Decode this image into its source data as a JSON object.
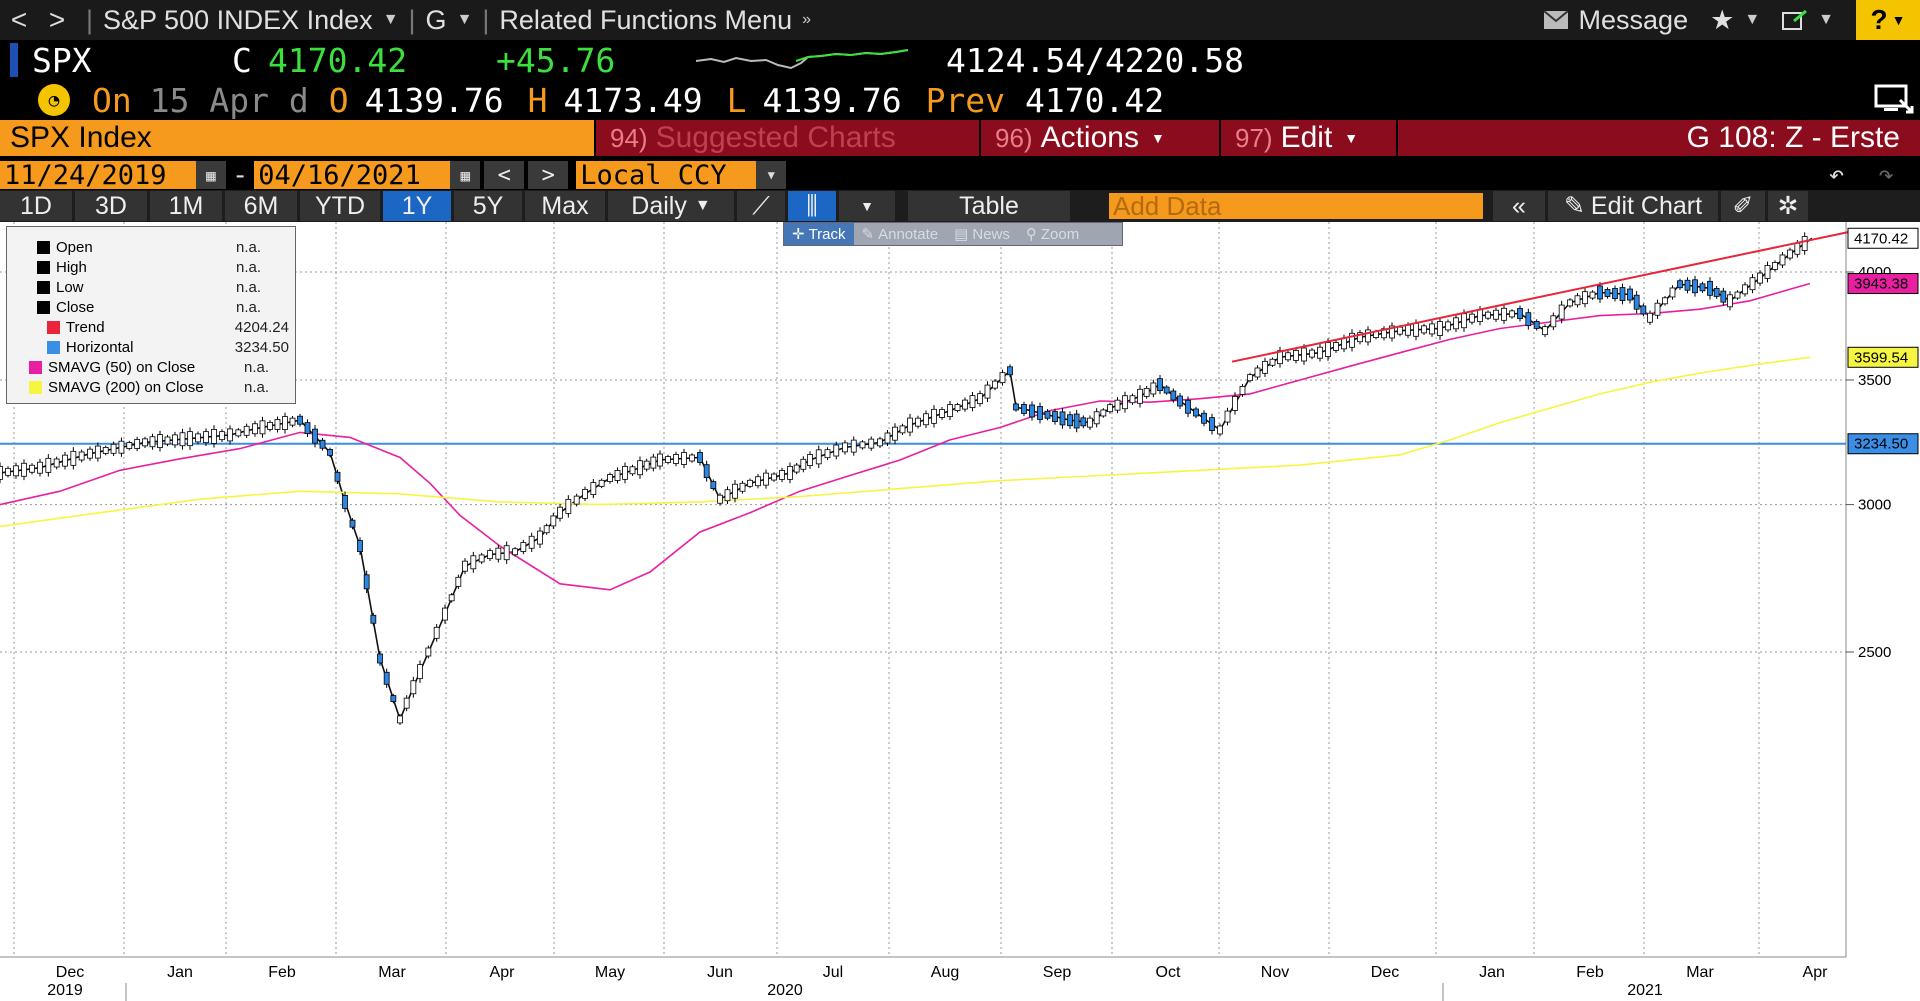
{
  "topbar": {
    "back": "<",
    "forward": ">",
    "security": "S&P 500 INDEX Index",
    "function": "G",
    "related": "Related Functions Menu",
    "message": "Message",
    "help": "?"
  },
  "ticker": {
    "symbol": "SPX",
    "last_label": "C",
    "last": "4170.42",
    "change": "+45.76",
    "range": "4124.54/4220.58"
  },
  "summary": {
    "on": "On",
    "date": "15 Apr d",
    "open_label": "O",
    "open": "4139.76",
    "high_label": "H",
    "high": "4173.49",
    "low_label": "L",
    "low": "4139.76",
    "prev_label": "Prev",
    "prev": "4170.42"
  },
  "titlebar": {
    "security": "SPX Index",
    "suggested_num": "94)",
    "suggested": "Suggested Charts",
    "actions_num": "96)",
    "actions": "Actions",
    "edit_num": "97)",
    "edit": "Edit",
    "layout": "G 108: Z - Erste"
  },
  "daterow": {
    "start": "11/24/2019",
    "dash": "-",
    "end": "04/16/2021",
    "currency": "Local CCY"
  },
  "rangebar": {
    "ranges": [
      "1D",
      "3D",
      "1M",
      "6M",
      "YTD",
      "1Y",
      "5Y",
      "Max"
    ],
    "active": "1Y",
    "period": "Daily",
    "table": "Table",
    "add_data_placeholder": "Add Data",
    "edit_chart": "Edit Chart"
  },
  "chart_toolbar": [
    "Track",
    "Annotate",
    "News",
    "Zoom"
  ],
  "legend": [
    {
      "name": "Open",
      "value": "n.a.",
      "color": "#000000"
    },
    {
      "name": "High",
      "value": "n.a.",
      "color": "#000000"
    },
    {
      "name": "Low",
      "value": "n.a.",
      "color": "#000000"
    },
    {
      "name": "Close",
      "value": "n.a.",
      "color": "#000000"
    },
    {
      "name": "Trend",
      "value": "4204.24",
      "color": "#e8253a"
    },
    {
      "name": "Horizontal",
      "value": "3234.50",
      "color": "#3a8ee6"
    },
    {
      "name": "SMAVG (50)  on Close",
      "value": "n.a.",
      "color": "#e81fa0"
    },
    {
      "name": "SMAVG (200)  on Close",
      "value": "n.a.",
      "color": "#f5f542"
    }
  ],
  "chart_data": {
    "type": "line",
    "series": [
      {
        "name": "Close",
        "color": "#000000",
        "points": [
          [
            0,
            3120
          ],
          [
            40,
            3140
          ],
          [
            90,
            3195
          ],
          [
            145,
            3240
          ],
          [
            190,
            3255
          ],
          [
            230,
            3270
          ],
          [
            255,
            3295
          ],
          [
            300,
            3330
          ],
          [
            330,
            3200
          ],
          [
            345,
            3010
          ],
          [
            360,
            2850
          ],
          [
            380,
            2480
          ],
          [
            400,
            2300
          ],
          [
            420,
            2440
          ],
          [
            445,
            2620
          ],
          [
            465,
            2780
          ],
          [
            490,
            2820
          ],
          [
            515,
            2830
          ],
          [
            540,
            2880
          ],
          [
            560,
            2970
          ],
          [
            585,
            3040
          ],
          [
            610,
            3100
          ],
          [
            640,
            3140
          ],
          [
            660,
            3170
          ],
          [
            700,
            3180
          ],
          [
            720,
            3020
          ],
          [
            750,
            3080
          ],
          [
            790,
            3120
          ],
          [
            810,
            3170
          ],
          [
            845,
            3220
          ],
          [
            880,
            3240
          ],
          [
            910,
            3310
          ],
          [
            950,
            3370
          ],
          [
            980,
            3420
          ],
          [
            1010,
            3540
          ],
          [
            1016,
            3385
          ],
          [
            1040,
            3360
          ],
          [
            1070,
            3330
          ],
          [
            1090,
            3320
          ],
          [
            1110,
            3380
          ],
          [
            1140,
            3430
          ],
          [
            1160,
            3480
          ],
          [
            1180,
            3410
          ],
          [
            1220,
            3290
          ],
          [
            1250,
            3510
          ],
          [
            1280,
            3600
          ],
          [
            1320,
            3620
          ],
          [
            1360,
            3690
          ],
          [
            1400,
            3720
          ],
          [
            1440,
            3730
          ],
          [
            1480,
            3790
          ],
          [
            1520,
            3800
          ],
          [
            1545,
            3720
          ],
          [
            1570,
            3850
          ],
          [
            1600,
            3900
          ],
          [
            1630,
            3890
          ],
          [
            1650,
            3780
          ],
          [
            1680,
            3940
          ],
          [
            1710,
            3920
          ],
          [
            1730,
            3860
          ],
          [
            1760,
            3970
          ],
          [
            1790,
            4090
          ],
          [
            1812,
            4170
          ]
        ]
      },
      {
        "name": "SMAVG (50) on Close",
        "color": "#e81fa0",
        "points": [
          [
            0,
            3000
          ],
          [
            60,
            3050
          ],
          [
            120,
            3130
          ],
          [
            180,
            3175
          ],
          [
            240,
            3215
          ],
          [
            300,
            3280
          ],
          [
            350,
            3260
          ],
          [
            400,
            3180
          ],
          [
            430,
            3080
          ],
          [
            460,
            2960
          ],
          [
            500,
            2850
          ],
          [
            560,
            2720
          ],
          [
            610,
            2700
          ],
          [
            650,
            2760
          ],
          [
            700,
            2900
          ],
          [
            750,
            2970
          ],
          [
            800,
            3050
          ],
          [
            850,
            3110
          ],
          [
            900,
            3170
          ],
          [
            950,
            3250
          ],
          [
            1000,
            3300
          ],
          [
            1050,
            3370
          ],
          [
            1100,
            3410
          ],
          [
            1150,
            3405
          ],
          [
            1200,
            3420
          ],
          [
            1250,
            3440
          ],
          [
            1300,
            3500
          ],
          [
            1350,
            3560
          ],
          [
            1400,
            3620
          ],
          [
            1450,
            3680
          ],
          [
            1500,
            3730
          ],
          [
            1550,
            3760
          ],
          [
            1600,
            3790
          ],
          [
            1650,
            3800
          ],
          [
            1700,
            3820
          ],
          [
            1750,
            3860
          ],
          [
            1810,
            3943.38
          ]
        ]
      },
      {
        "name": "SMAVG (200) on Close",
        "color": "#f5f542",
        "points": [
          [
            0,
            2920
          ],
          [
            100,
            2970
          ],
          [
            200,
            3020
          ],
          [
            300,
            3050
          ],
          [
            400,
            3040
          ],
          [
            500,
            3010
          ],
          [
            600,
            3000
          ],
          [
            700,
            3010
          ],
          [
            800,
            3030
          ],
          [
            900,
            3060
          ],
          [
            1000,
            3090
          ],
          [
            1100,
            3110
          ],
          [
            1200,
            3130
          ],
          [
            1300,
            3150
          ],
          [
            1400,
            3190
          ],
          [
            1450,
            3250
          ],
          [
            1500,
            3320
          ],
          [
            1550,
            3380
          ],
          [
            1600,
            3440
          ],
          [
            1650,
            3490
          ],
          [
            1700,
            3530
          ],
          [
            1760,
            3570
          ],
          [
            1810,
            3599.54
          ]
        ]
      }
    ],
    "trendline": {
      "x1": 1232,
      "y1": 3580,
      "x2": 1850,
      "y2": 4204.24
    },
    "horizontal": 3234.5,
    "yticks": [
      2500,
      3000,
      3500,
      4000
    ],
    "price_labels": [
      {
        "text": "4170.42",
        "value": 4170.42,
        "bg": "#ffffff",
        "fg": "#000000"
      },
      {
        "text": "3943.38",
        "value": 3943.38,
        "bg": "#e81fa0",
        "fg": "#000000"
      },
      {
        "text": "3599.54",
        "value": 3599.54,
        "bg": "#f5f542",
        "fg": "#000000"
      },
      {
        "text": "3234.50",
        "value": 3234.5,
        "bg": "#3a8ee6",
        "fg": "#000000"
      }
    ],
    "tick_label_4000": "4000",
    "tick_label_3500": "3500",
    "tick_label_3000": "3000",
    "tick_label_2500": "2500",
    "months": [
      {
        "label": "Dec",
        "x": 70
      },
      {
        "label": "Jan",
        "x": 180
      },
      {
        "label": "Feb",
        "x": 282
      },
      {
        "label": "Mar",
        "x": 392
      },
      {
        "label": "Apr",
        "x": 502
      },
      {
        "label": "May",
        "x": 610
      },
      {
        "label": "Jun",
        "x": 720
      },
      {
        "label": "Jul",
        "x": 833
      },
      {
        "label": "Aug",
        "x": 945
      },
      {
        "label": "Sep",
        "x": 1057
      },
      {
        "label": "Oct",
        "x": 1168
      },
      {
        "label": "Nov",
        "x": 1275
      },
      {
        "label": "Dec",
        "x": 1385
      },
      {
        "label": "Jan",
        "x": 1492
      },
      {
        "label": "Feb",
        "x": 1590
      },
      {
        "label": "Mar",
        "x": 1700
      },
      {
        "label": "Apr",
        "x": 1815
      }
    ],
    "years": [
      {
        "label": "2019",
        "x": 65
      },
      {
        "label": "2020",
        "x": 785
      },
      {
        "label": "2021",
        "x": 1645
      }
    ]
  }
}
